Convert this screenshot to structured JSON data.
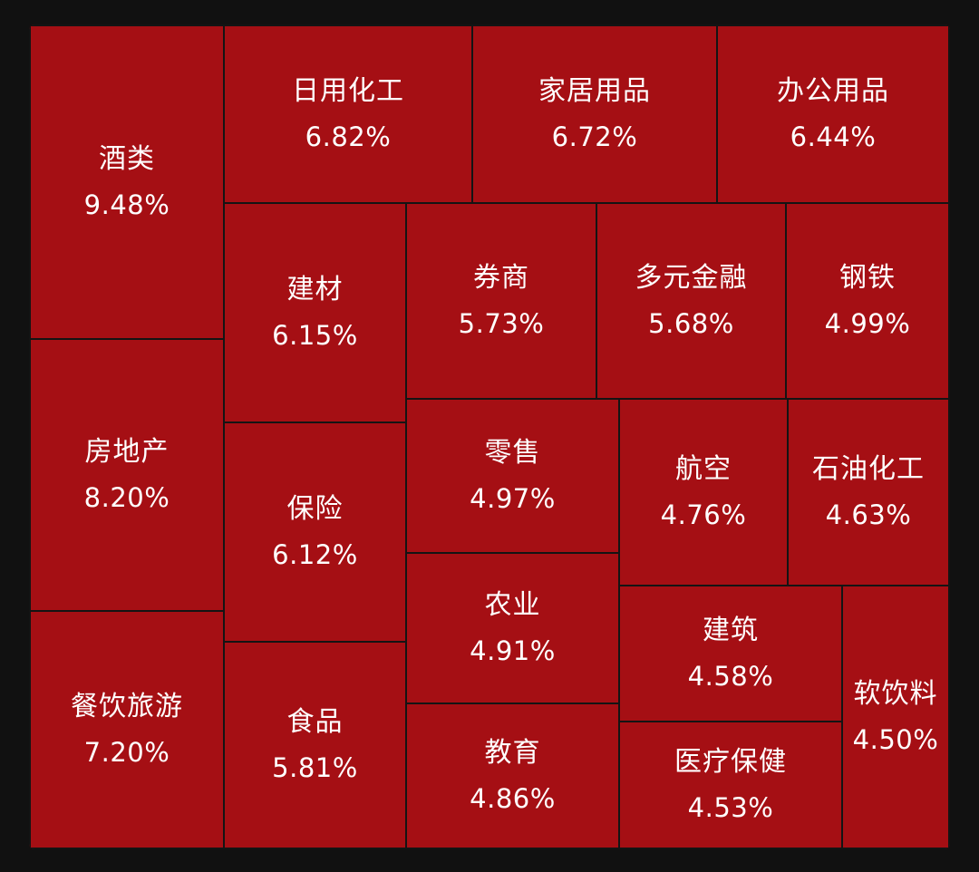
{
  "colors": {
    "background": "#111111",
    "tile": "#a50f14",
    "border": "#141414",
    "text": "#ffffff"
  },
  "chart_data": {
    "type": "treemap",
    "unit": "%",
    "items": [
      {
        "name": "酒类",
        "value": 9.48,
        "label": "9.48%"
      },
      {
        "name": "房地产",
        "value": 8.2,
        "label": "8.20%"
      },
      {
        "name": "餐饮旅游",
        "value": 7.2,
        "label": "7.20%"
      },
      {
        "name": "日用化工",
        "value": 6.82,
        "label": "6.82%"
      },
      {
        "name": "家居用品",
        "value": 6.72,
        "label": "6.72%"
      },
      {
        "name": "办公用品",
        "value": 6.44,
        "label": "6.44%"
      },
      {
        "name": "建材",
        "value": 6.15,
        "label": "6.15%"
      },
      {
        "name": "保险",
        "value": 6.12,
        "label": "6.12%"
      },
      {
        "name": "食品",
        "value": 5.81,
        "label": "5.81%"
      },
      {
        "name": "券商",
        "value": 5.73,
        "label": "5.73%"
      },
      {
        "name": "多元金融",
        "value": 5.68,
        "label": "5.68%"
      },
      {
        "name": "钢铁",
        "value": 4.99,
        "label": "4.99%"
      },
      {
        "name": "零售",
        "value": 4.97,
        "label": "4.97%"
      },
      {
        "name": "航空",
        "value": 4.76,
        "label": "4.76%"
      },
      {
        "name": "石油化工",
        "value": 4.63,
        "label": "4.63%"
      },
      {
        "name": "农业",
        "value": 4.91,
        "label": "4.91%"
      },
      {
        "name": "建筑",
        "value": 4.58,
        "label": "4.58%"
      },
      {
        "name": "软饮料",
        "value": 4.5,
        "label": "4.50%"
      },
      {
        "name": "教育",
        "value": 4.86,
        "label": "4.86%"
      },
      {
        "name": "医疗保健",
        "value": 4.53,
        "label": "4.53%"
      }
    ]
  }
}
